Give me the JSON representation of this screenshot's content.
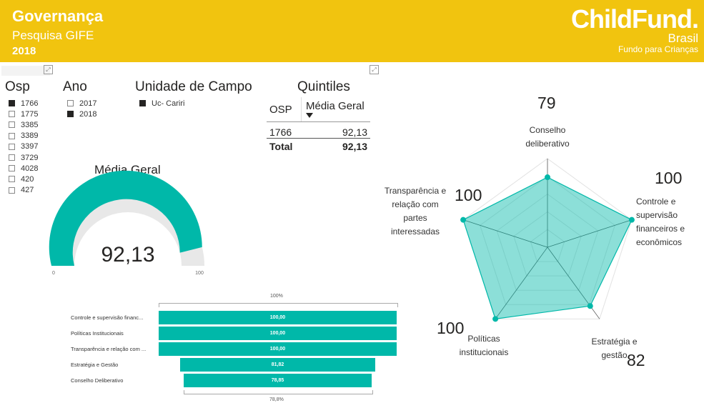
{
  "header": {
    "title": "Governança",
    "subtitle": "Pesquisa GIFE",
    "year": "2018",
    "logo_name": "ChildFund.",
    "logo_country": "Brasil",
    "logo_tagline": "Fundo para Crianças",
    "color": "#f1c40f"
  },
  "slicers": {
    "osp": {
      "title": "Osp",
      "items": [
        {
          "label": "1766",
          "checked": true
        },
        {
          "label": "1775",
          "checked": false
        },
        {
          "label": "3385",
          "checked": false
        },
        {
          "label": "3389",
          "checked": false
        },
        {
          "label": "3397",
          "checked": false
        },
        {
          "label": "3729",
          "checked": false
        },
        {
          "label": "4028",
          "checked": false
        },
        {
          "label": "420",
          "checked": false
        },
        {
          "label": "427",
          "checked": false
        }
      ]
    },
    "ano": {
      "title": "Ano",
      "items": [
        {
          "label": "2017",
          "checked": false
        },
        {
          "label": "2018",
          "checked": true
        }
      ]
    },
    "unidade": {
      "title": "Unidade de Campo",
      "items": [
        {
          "label": "Uc- Cariri",
          "checked": true
        }
      ]
    }
  },
  "quintiles": {
    "title": "Quintiles",
    "col1": "OSP",
    "col2": "Média Geral",
    "row_osp": "1766",
    "row_value": "92,13",
    "total_label": "Total",
    "total_value": "92,13"
  },
  "gauge": {
    "title": "Média Geral",
    "value": 92.13,
    "value_label": "92,13",
    "min_label": "0",
    "max_label": "100",
    "min": 0,
    "max": 100,
    "color": "#00b8a9"
  },
  "funnel": {
    "top_pct": "100%",
    "bottom_pct": "78,8%",
    "color": "#00b8a9"
  },
  "radar": {
    "color": "#00b8a9",
    "axis_labels": [
      "Conselho\ndeliberativo",
      "Controle e\nsupervisão\nfinanceiros e\neconômicos",
      "Estratégia e\ngestão",
      "Políticas\ninstitucionais",
      "Transparência e\nrelação com\npartes\ninteressadas"
    ],
    "value_labels": [
      "79",
      "100",
      "82",
      "100",
      "100"
    ]
  },
  "chart_data": [
    {
      "type": "bar",
      "categories": [
        "Controle e supervisão financ...",
        "Políticas Institucionais",
        "Transparência e relação com ...",
        "Estratégia e Gestão",
        "Conselho Deliberativo"
      ],
      "values": [
        100.0,
        100.0,
        100.0,
        81.82,
        78.85
      ],
      "value_labels": [
        "100,00",
        "100,00",
        "100,00",
        "81,82",
        "78,85"
      ]
    },
    {
      "type": "radar",
      "categories": [
        "Conselho deliberativo",
        "Controle e supervisão financeiros e econômicos",
        "Estratégia e gestão",
        "Políticas institucionais",
        "Transparência e relação com partes interessadas"
      ],
      "values": [
        79,
        100,
        82,
        100,
        100
      ],
      "ylim": [
        0,
        100
      ]
    }
  ]
}
